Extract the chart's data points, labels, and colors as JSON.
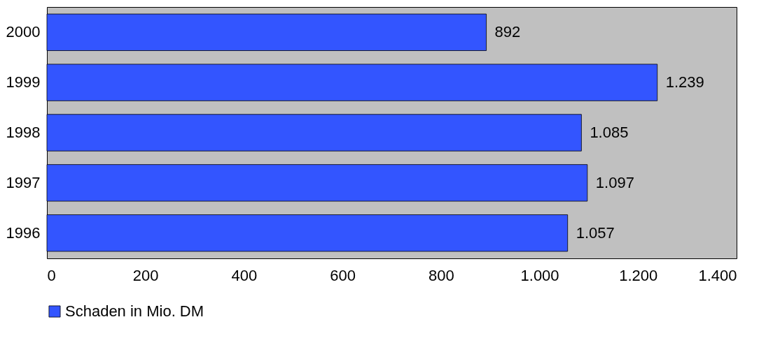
{
  "chart_data": {
    "type": "bar",
    "orientation": "horizontal",
    "categories": [
      "2000",
      "1999",
      "1998",
      "1997",
      "1996"
    ],
    "series": [
      {
        "name": "Schaden in Mio. DM",
        "color": "#3355ff",
        "values": [
          892,
          1239,
          1085,
          1097,
          1057
        ],
        "value_labels": [
          "892",
          "1.239",
          "1.085",
          "1.097",
          "1.057"
        ]
      }
    ],
    "xlim": [
      0,
      1400
    ],
    "xticks": [
      0,
      200,
      400,
      600,
      800,
      {
        "value": 1000,
        "label": "1.000"
      },
      {
        "value": 1200,
        "label": "1.200"
      },
      {
        "value": 1400,
        "label": "1.400"
      }
    ],
    "grid": false,
    "legend": "bottom"
  }
}
